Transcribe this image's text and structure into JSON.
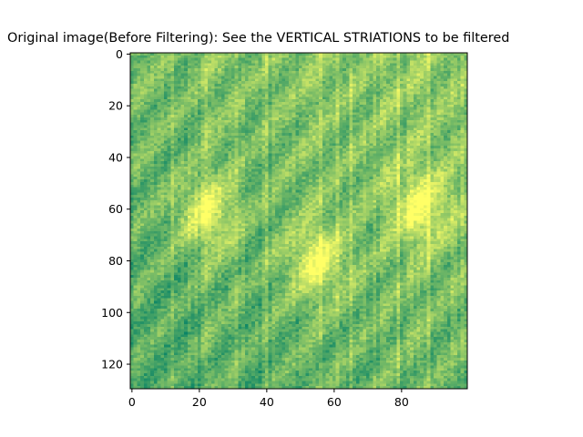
{
  "chart_data": {
    "type": "heatmap",
    "title": "Original image(Before Filtering): See the VERTICAL STRIATIONS to be filtered",
    "xlabel": "",
    "ylabel": "",
    "xlim": [
      -0.5,
      99.5
    ],
    "ylim": [
      129.5,
      -0.5
    ],
    "image_width": 100,
    "image_height": 130,
    "colormap": "summer_r",
    "grid": false,
    "legend": "none",
    "x_ticks": [
      0,
      20,
      40,
      60,
      80
    ],
    "x_tick_labels": [
      "0",
      "20",
      "40",
      "60",
      "80"
    ],
    "y_ticks": [
      0,
      20,
      40,
      60,
      80,
      100,
      120
    ],
    "y_tick_labels": [
      "0",
      "20",
      "40",
      "60",
      "80",
      "100",
      "120"
    ],
    "bright_regions": [
      {
        "description": "bright elliptical patch",
        "x_center": 55,
        "y_center": 80
      },
      {
        "description": "bright patch",
        "x_center": 22,
        "y_center": 62
      },
      {
        "description": "bright vertical band",
        "x_center": 86,
        "y_center": 60
      }
    ],
    "striation_columns": [
      12,
      22,
      31,
      40,
      48,
      56,
      61,
      65,
      72,
      79,
      88
    ]
  }
}
